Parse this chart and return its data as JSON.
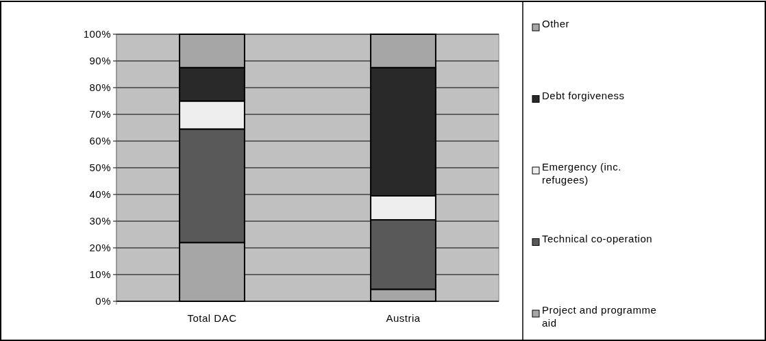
{
  "chart_data": {
    "type": "bar",
    "stacked": true,
    "categories": [
      "Total DAC",
      "Austria"
    ],
    "series": [
      {
        "name": "Project and programme aid",
        "color": "#a6a6a6",
        "values": [
          22,
          4.5
        ]
      },
      {
        "name": "Technical co-operation",
        "color": "#595959",
        "values": [
          42.5,
          26
        ]
      },
      {
        "name": "Emergency (inc. refugees)",
        "color": "#eeeeee",
        "values": [
          10.5,
          9
        ]
      },
      {
        "name": "Debt forgiveness",
        "color": "#292929",
        "values": [
          12.5,
          48
        ]
      },
      {
        "name": "Other",
        "color": "#a6a6a6",
        "values": [
          12.5,
          12.5
        ]
      }
    ],
    "ylim": [
      0,
      100
    ],
    "yticks": [
      {
        "value": 0,
        "label": "0%"
      },
      {
        "value": 10,
        "label": "10%"
      },
      {
        "value": 20,
        "label": "20%"
      },
      {
        "value": 30,
        "label": "30%"
      },
      {
        "value": 40,
        "label": "40%"
      },
      {
        "value": 50,
        "label": "50%"
      },
      {
        "value": 60,
        "label": "60%"
      },
      {
        "value": 70,
        "label": "70%"
      },
      {
        "value": 80,
        "label": "80%"
      },
      {
        "value": 90,
        "label": "90%"
      },
      {
        "value": 100,
        "label": "100%"
      }
    ],
    "grid": "y",
    "legend": "right"
  }
}
